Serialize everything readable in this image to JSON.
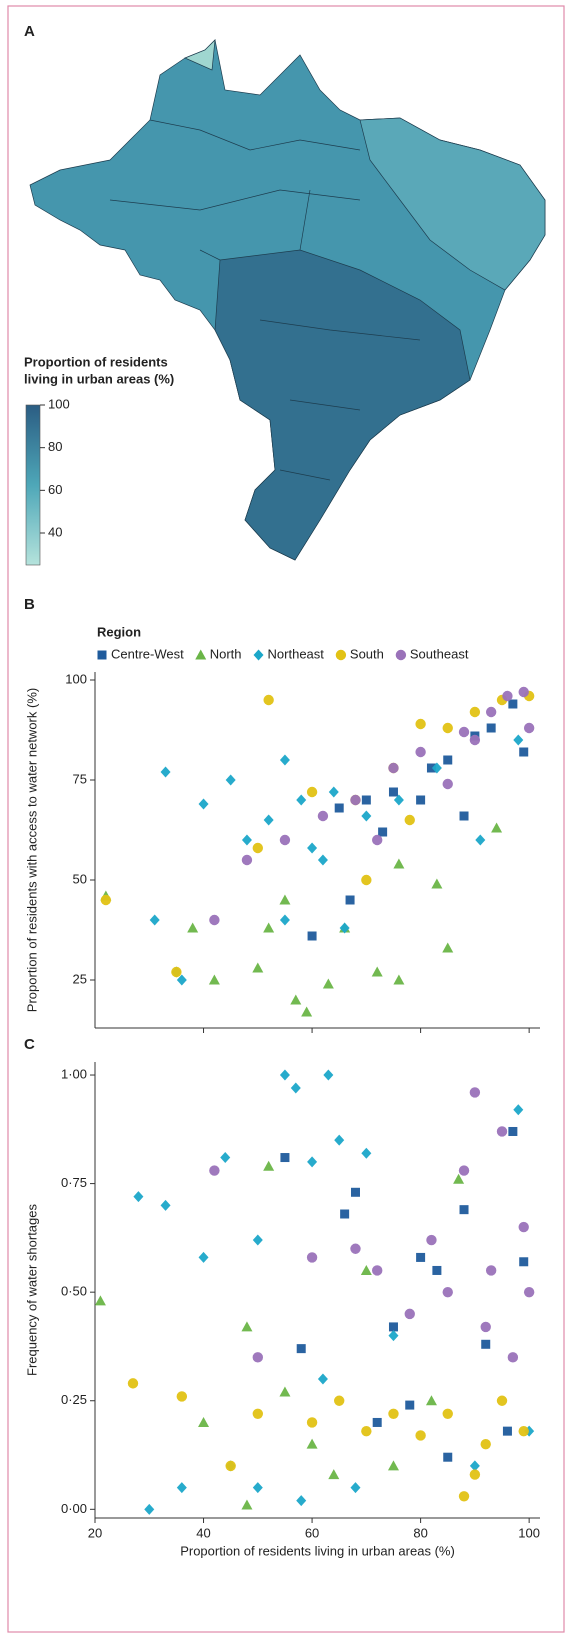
{
  "map": {
    "panel": "A",
    "colorbar_title": [
      "Proportion of residents",
      "living in urban areas (%)"
    ],
    "colorbar_range": [
      25,
      100
    ],
    "colorbar_ticks": [
      40,
      60,
      80,
      100
    ]
  },
  "chart_data": [
    {
      "type": "scatter",
      "panel": "B",
      "legend_title": "Region",
      "ylabel": "Proportion of residents with access to water network (%)",
      "xlim": [
        20,
        102
      ],
      "ylim": [
        13,
        102
      ],
      "xticks": [
        40,
        60,
        80,
        100
      ],
      "xtick_labels": false,
      "yticks": [
        25,
        50,
        75,
        100
      ],
      "series": [
        {
          "name": "Centre-West",
          "color": "#1f5b9c",
          "marker": "square",
          "x": [
            97,
            90,
            85,
            80,
            75,
            70,
            65,
            60,
            67,
            73,
            88,
            82,
            93,
            99
          ],
          "values": [
            94,
            86,
            80,
            70,
            72,
            70,
            68,
            36,
            45,
            62,
            66,
            78,
            88,
            82
          ]
        },
        {
          "name": "North",
          "color": "#6ab547",
          "marker": "triangle",
          "x": [
            22,
            38,
            42,
            50,
            55,
            57,
            59,
            63,
            66,
            72,
            76,
            85,
            83,
            94,
            76,
            52
          ],
          "values": [
            46,
            38,
            25,
            28,
            45,
            20,
            17,
            24,
            38,
            27,
            25,
            33,
            49,
            63,
            54,
            38
          ]
        },
        {
          "name": "Northeast",
          "color": "#1ba7c9",
          "marker": "diamond",
          "x": [
            33,
            35,
            36,
            31,
            40,
            45,
            48,
            52,
            55,
            58,
            60,
            62,
            64,
            66,
            70,
            76,
            83,
            91,
            98,
            55
          ],
          "values": [
            77,
            27,
            25,
            40,
            69,
            75,
            60,
            65,
            80,
            70,
            58,
            55,
            72,
            38,
            66,
            70,
            78,
            60,
            85,
            40
          ]
        },
        {
          "name": "South",
          "color": "#e2c214",
          "marker": "circle",
          "x": [
            22,
            35,
            52,
            50,
            60,
            68,
            75,
            80,
            85,
            90,
            95,
            100,
            70,
            78
          ],
          "values": [
            45,
            27,
            95,
            58,
            72,
            70,
            78,
            89,
            88,
            92,
            95,
            96,
            50,
            65
          ]
        },
        {
          "name": "Southeast",
          "color": "#9a72b9",
          "marker": "circle",
          "x": [
            42,
            48,
            55,
            62,
            68,
            75,
            80,
            85,
            88,
            90,
            93,
            96,
            99,
            100,
            72
          ],
          "values": [
            40,
            55,
            60,
            66,
            70,
            78,
            82,
            74,
            87,
            85,
            92,
            96,
            97,
            88,
            60
          ]
        }
      ]
    },
    {
      "type": "scatter",
      "panel": "C",
      "xlabel": "Proportion of residents living in urban areas (%)",
      "ylabel": "Frequency of water shortages",
      "xlim": [
        20,
        102
      ],
      "ylim": [
        -0.02,
        1.03
      ],
      "xticks": [
        20,
        40,
        60,
        80,
        100
      ],
      "xtick_labels": true,
      "yticks": [
        {
          "value": 0,
          "label": "0·00"
        },
        {
          "value": 0.25,
          "label": "0·25"
        },
        {
          "value": 0.5,
          "label": "0·50"
        },
        {
          "value": 0.75,
          "label": "0·75"
        },
        {
          "value": 1,
          "label": "1·00"
        }
      ],
      "series": [
        {
          "color": "#1f5b9c",
          "marker": "square",
          "x": [
            55,
            66,
            68,
            58,
            75,
            80,
            83,
            88,
            92,
            97,
            96,
            78,
            85,
            72,
            99
          ],
          "values": [
            0.81,
            0.68,
            0.73,
            0.37,
            0.42,
            0.58,
            0.55,
            0.69,
            0.38,
            0.87,
            0.18,
            0.24,
            0.12,
            0.2,
            0.57
          ]
        },
        {
          "color": "#6ab547",
          "marker": "triangle",
          "x": [
            21,
            40,
            48,
            52,
            55,
            60,
            64,
            70,
            75,
            82,
            87,
            48
          ],
          "values": [
            0.48,
            0.2,
            0.42,
            0.79,
            0.27,
            0.15,
            0.08,
            0.55,
            0.1,
            0.25,
            0.76,
            0.01
          ]
        },
        {
          "color": "#1ba7c9",
          "marker": "diamond",
          "x": [
            28,
            33,
            36,
            40,
            44,
            50,
            55,
            57,
            60,
            63,
            65,
            70,
            45,
            50,
            58,
            62,
            68,
            75,
            90,
            98,
            100,
            30
          ],
          "values": [
            0.72,
            0.7,
            0.05,
            0.58,
            0.81,
            0.62,
            1,
            0.97,
            0.8,
            1,
            0.85,
            0.82,
            0.1,
            0.05,
            0.02,
            0.3,
            0.05,
            0.4,
            0.1,
            0.92,
            0.18,
            0
          ]
        },
        {
          "color": "#e2c214",
          "marker": "circle",
          "x": [
            27,
            36,
            45,
            50,
            60,
            65,
            70,
            75,
            80,
            85,
            88,
            90,
            95,
            99,
            92
          ],
          "values": [
            0.29,
            0.26,
            0.1,
            0.22,
            0.2,
            0.25,
            0.18,
            0.22,
            0.17,
            0.22,
            0.03,
            0.08,
            0.25,
            0.18,
            0.15
          ]
        },
        {
          "color": "#9a72b9",
          "marker": "circle",
          "x": [
            42,
            50,
            60,
            68,
            72,
            78,
            82,
            85,
            88,
            90,
            92,
            95,
            97,
            99,
            100,
            93
          ],
          "values": [
            0.78,
            0.35,
            0.58,
            0.6,
            0.55,
            0.45,
            0.62,
            0.5,
            0.78,
            0.96,
            0.42,
            0.87,
            0.35,
            0.65,
            0.5,
            0.55
          ]
        }
      ]
    }
  ]
}
